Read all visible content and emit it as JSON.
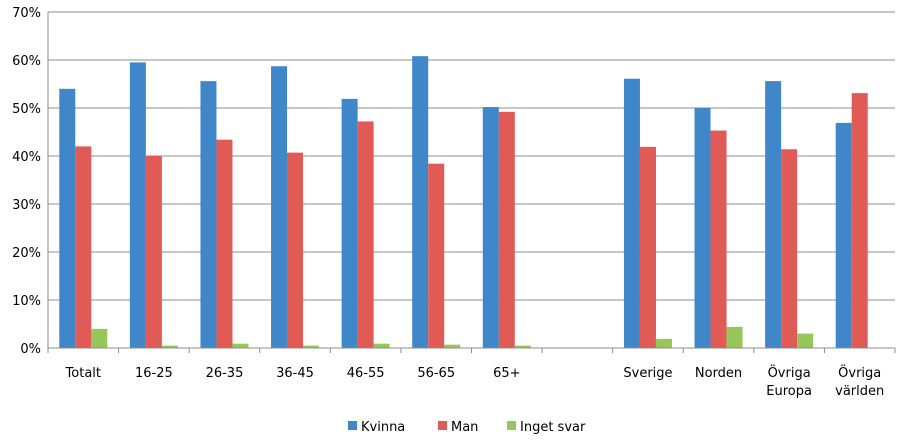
{
  "chart_data": {
    "type": "bar",
    "categories": [
      "Totalt",
      "16-25",
      "26-35",
      "36-45",
      "46-55",
      "56-65",
      "65+",
      null,
      "Sverige",
      "Norden",
      "Övriga Europa",
      "Övriga världen"
    ],
    "series": [
      {
        "name": "Kvinna",
        "color": "#3f87c9",
        "values": [
          54,
          59.5,
          55.6,
          58.7,
          51.9,
          60.8,
          50.2,
          null,
          56.1,
          50,
          55.6,
          46.9
        ]
      },
      {
        "name": "Man",
        "color": "#e05a56",
        "values": [
          42,
          40,
          43.4,
          40.7,
          47.2,
          38.4,
          49.2,
          null,
          41.9,
          45.3,
          41.4,
          53.1
        ]
      },
      {
        "name": "Inget svar",
        "color": "#97c65a",
        "values": [
          4,
          0.5,
          0.9,
          0.5,
          0.9,
          0.7,
          0.5,
          null,
          1.9,
          4.4,
          3,
          0
        ]
      }
    ],
    "ylim": [
      0,
      70
    ],
    "yticks": [
      {
        "value": 0,
        "label": "0%"
      },
      {
        "value": 10,
        "label": "10%"
      },
      {
        "value": 20,
        "label": "20%"
      },
      {
        "value": 30,
        "label": "30%"
      },
      {
        "value": 40,
        "label": "40%"
      },
      {
        "value": 50,
        "label": "50%"
      },
      {
        "value": 60,
        "label": "60%"
      },
      {
        "value": 70,
        "label": "70%"
      }
    ],
    "grid": true,
    "legend": "bottom"
  }
}
